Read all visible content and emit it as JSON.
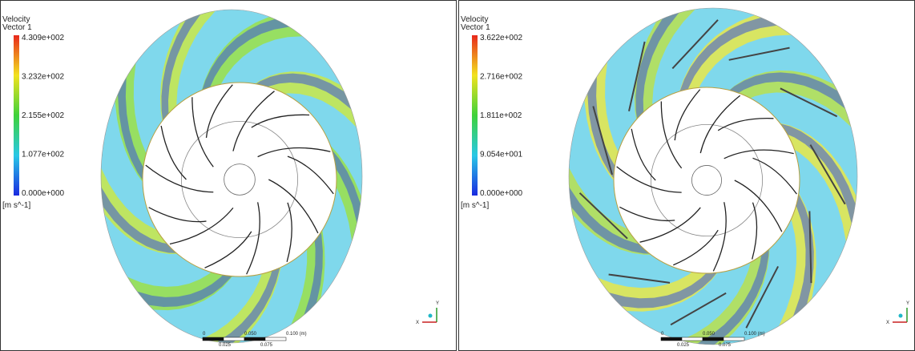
{
  "panels": [
    {
      "legend": {
        "title": "Velocity",
        "subtitle": "Vector 1",
        "labels": [
          "4.309e+002",
          "3.232e+002",
          "2.155e+002",
          "1.077e+002",
          "0.000e+000"
        ],
        "unit": "[m s^-1]"
      },
      "scale": {
        "top": [
          "0",
          "0.050",
          "0.100 (m)"
        ],
        "bottom": [
          "0.025",
          "0.075"
        ]
      },
      "axes": {
        "y": "Y",
        "x": "X"
      }
    },
    {
      "legend": {
        "title": "Velocity",
        "subtitle": "Vector 1",
        "labels": [
          "3.622e+002",
          "2.716e+002",
          "1.811e+002",
          "9.054e+001",
          "0.000e+000"
        ],
        "unit": "[m s^-1]"
      },
      "scale": {
        "top": [
          "0",
          "0.050",
          "0.100 (m)"
        ],
        "bottom": [
          "0.025",
          "0.075"
        ]
      },
      "axes": {
        "y": "Y",
        "x": "X"
      }
    }
  ]
}
